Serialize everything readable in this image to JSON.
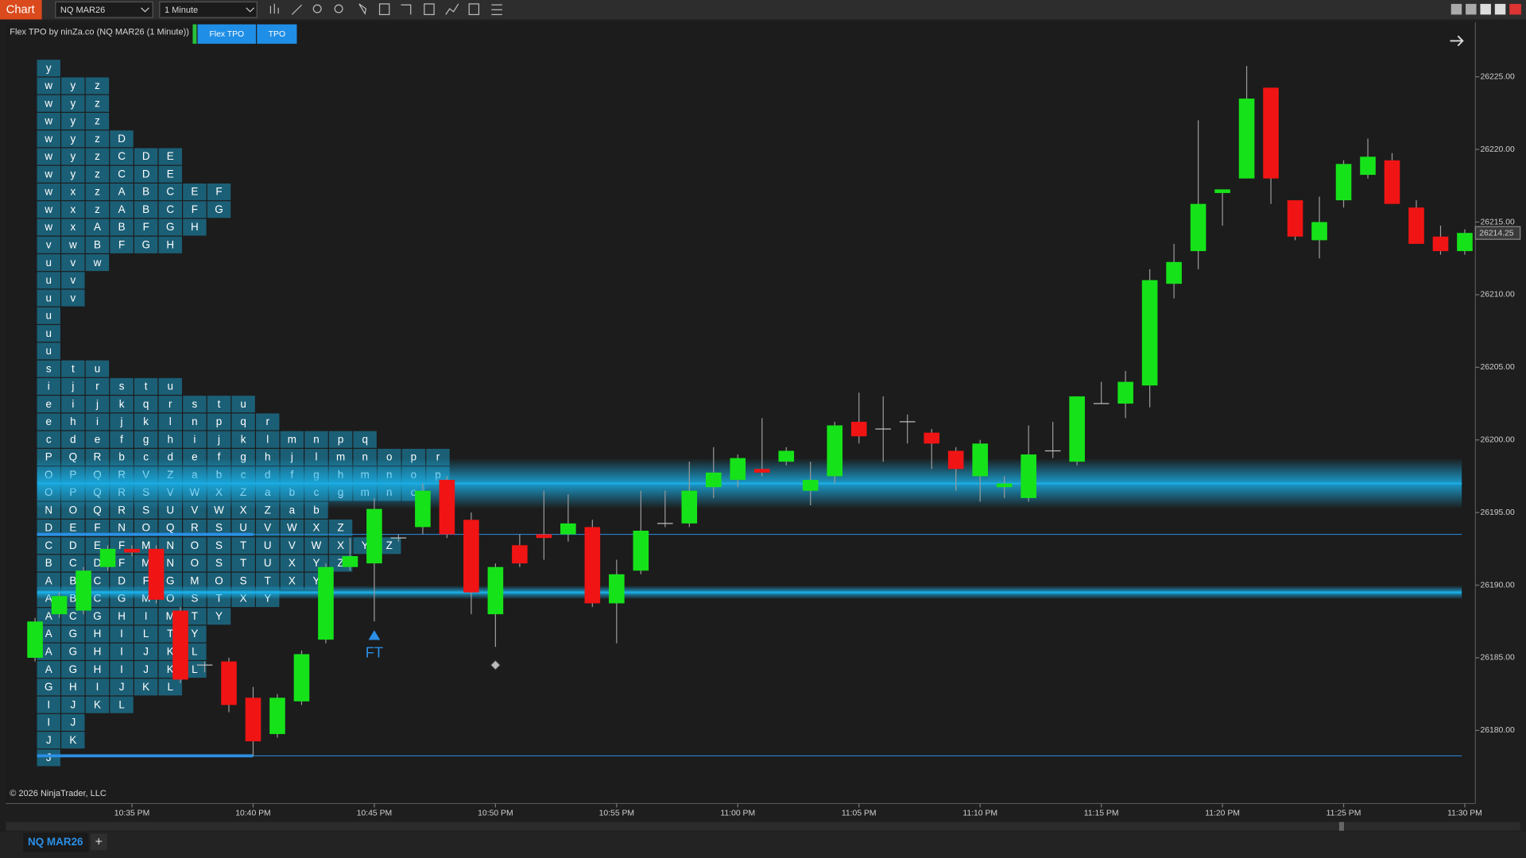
{
  "app": {
    "tab": "Chart",
    "instrument": "NQ MAR26",
    "interval": "1 Minute",
    "indicator_label": "Flex TPO by ninZa.co (NQ MAR26 (1 Minute))",
    "buttons": [
      "Flex TPO",
      "TPO"
    ],
    "copyright": "© 2026 NinjaTrader, LLC",
    "bottom_tab": "NQ MAR26",
    "add_tab": "+"
  },
  "chart_data": {
    "type": "candlestick",
    "categories": [
      null,
      null,
      null,
      null,
      "10:35 PM",
      null,
      null,
      null,
      null,
      "10:40 PM",
      null,
      null,
      null,
      null,
      "10:45 PM",
      null,
      null,
      null,
      null,
      "10:50 PM",
      null,
      null,
      null,
      null,
      "10:55 PM",
      null,
      null,
      null,
      null,
      "11:00 PM",
      null,
      null,
      null,
      null,
      "11:05 PM",
      null,
      null,
      null,
      null,
      "11:10 PM",
      null,
      null,
      null,
      null,
      "11:15 PM",
      null,
      null,
      null,
      null,
      "11:20 PM",
      null,
      null,
      null,
      null,
      "11:25 PM",
      null,
      null,
      null,
      null,
      "11:30 PM"
    ],
    "open": [
      26185.0,
      26188.0,
      26188.25,
      26191.25,
      26192.5,
      26192.5,
      26188.25,
      26184.5,
      26184.75,
      26182.25,
      26179.75,
      26182.0,
      26186.25,
      26191.25,
      26191.5,
      26193.25,
      26194.0,
      26197.25,
      26194.5,
      26188.0,
      26192.75,
      26193.5,
      26193.5,
      26194.0,
      26188.75,
      26191.0,
      26194.25,
      26194.25,
      26196.75,
      26197.25,
      26198.0,
      26198.5,
      26196.5,
      26197.5,
      26201.25,
      26200.75,
      26201.25,
      26200.5,
      26199.25,
      26197.5,
      26196.75,
      26196.0,
      26199.25,
      26198.5,
      26202.5,
      26202.5,
      26203.75,
      26210.75,
      26213.0,
      26217.0,
      26218.0,
      26224.25,
      26216.5,
      26213.75,
      26216.5,
      26218.25,
      26219.25,
      26216.0,
      26214.0,
      26213.0
    ],
    "high": [
      26187.75,
      26189.5,
      26191.25,
      26192.75,
      26192.75,
      26192.75,
      26188.5,
      26184.75,
      26185.0,
      26183.0,
      26182.5,
      26185.5,
      26191.5,
      26193.25,
      26196.0,
      26193.5,
      26197.0,
      26197.5,
      26195.0,
      26191.5,
      26193.5,
      26196.5,
      26196.25,
      26194.5,
      26191.75,
      26196.5,
      26196.5,
      26198.5,
      26199.5,
      26199.0,
      26201.5,
      26199.5,
      26198.5,
      26201.25,
      26203.25,
      26203.0,
      26201.75,
      26200.75,
      26199.5,
      26200.0,
      26197.5,
      26201.0,
      26201.25,
      26203.0,
      26204.0,
      26204.75,
      26211.75,
      26213.5,
      26222.0,
      26217.25,
      26225.75,
      26224.25,
      26216.5,
      26216.75,
      26219.25,
      26220.75,
      26219.75,
      26216.5,
      26214.75,
      26214.5
    ],
    "low": [
      26184.75,
      26187.75,
      26188.0,
      26191.0,
      26192.0,
      26188.75,
      26183.25,
      26184.0,
      26181.25,
      26178.25,
      26179.5,
      26181.75,
      26186.0,
      26191.0,
      26187.5,
      26193.0,
      26193.5,
      26193.25,
      26188.0,
      26185.75,
      26191.25,
      26191.75,
      26193.0,
      26188.5,
      26186.0,
      26190.75,
      26194.0,
      26194.0,
      26196.0,
      26196.75,
      26197.5,
      26198.25,
      26195.5,
      26197.0,
      26199.75,
      26198.5,
      26199.75,
      26198.0,
      26196.5,
      26195.75,
      26196.0,
      26195.75,
      26198.75,
      26198.25,
      26202.5,
      26201.5,
      26202.25,
      26209.75,
      26211.75,
      26214.75,
      26218.0,
      26216.25,
      26213.75,
      26212.5,
      26216.0,
      26218.0,
      26216.25,
      26213.5,
      26212.75,
      26212.75
    ],
    "close": [
      26187.5,
      26189.25,
      26191.0,
      26192.5,
      26192.25,
      26189.0,
      26183.5,
      26184.5,
      26181.75,
      26179.25,
      26182.25,
      26185.25,
      26191.25,
      26192.0,
      26195.25,
      26193.25,
      26196.5,
      26193.5,
      26189.5,
      26191.25,
      26191.5,
      26193.25,
      26194.25,
      26188.75,
      26190.75,
      26193.75,
      26194.25,
      26196.5,
      26197.75,
      26198.75,
      26197.75,
      26199.25,
      26197.25,
      26201.0,
      26200.25,
      26200.75,
      26201.25,
      26199.75,
      26198.0,
      26199.75,
      26197.0,
      26199.0,
      26199.25,
      26203.0,
      26202.5,
      26204.0,
      26211.0,
      26212.25,
      26216.25,
      26217.25,
      26223.5,
      26218.0,
      26214.0,
      26215.0,
      26219.0,
      26219.5,
      26216.25,
      26213.5,
      26213.0,
      26214.25
    ],
    "up_color": "#16e21a",
    "down_color": "#f01414",
    "ylim": [
      26175,
      26228.5
    ],
    "yticks": [
      {
        "value": 26180,
        "label": "26180.00"
      },
      {
        "value": 26185,
        "label": "26185.00"
      },
      {
        "value": 26190,
        "label": "26190.00"
      },
      {
        "value": 26195,
        "label": "26195.00"
      },
      {
        "value": 26200,
        "label": "26200.00"
      },
      {
        "value": 26205,
        "label": "26205.00"
      },
      {
        "value": 26210,
        "label": "26210.00"
      },
      {
        "value": 26215,
        "label": "26215.00"
      },
      {
        "value": 26220,
        "label": "26220.00"
      },
      {
        "value": 26225,
        "label": "26225.00"
      }
    ],
    "glow_levels": [
      26197.0,
      26189.5
    ],
    "thin_levels": [
      26193.5,
      26178.25
    ],
    "level_color": "#1ab0e8",
    "markers": [
      {
        "label": "FT",
        "time": "10:45 PM",
        "value": 26186.5
      },
      {
        "time": "10:50 PM",
        "value": 26184.5
      }
    ],
    "tpo_profile": {
      "color": "#1b5f76",
      "rows": [
        [
          "y"
        ],
        [
          "w",
          "y",
          "z"
        ],
        [
          "w",
          "y",
          "z"
        ],
        [
          "w",
          "y",
          "z"
        ],
        [
          "w",
          "y",
          "z",
          "D"
        ],
        [
          "w",
          "y",
          "z",
          "C",
          "D",
          "E"
        ],
        [
          "w",
          "y",
          "z",
          "C",
          "D",
          "E"
        ],
        [
          "w",
          "x",
          "z",
          "A",
          "B",
          "C",
          "E",
          "F"
        ],
        [
          "w",
          "x",
          "z",
          "A",
          "B",
          "C",
          "F",
          "G"
        ],
        [
          "w",
          "x",
          "A",
          "B",
          "F",
          "G",
          "H"
        ],
        [
          "v",
          "w",
          "B",
          "F",
          "G",
          "H"
        ],
        [
          "u",
          "v",
          "w"
        ],
        [
          "u",
          "v"
        ],
        [
          "u",
          "v"
        ],
        [
          "u"
        ],
        [
          "u"
        ],
        [
          "u"
        ],
        [
          "s",
          "t",
          "u"
        ],
        [
          "i",
          "j",
          "r",
          "s",
          "t",
          "u"
        ],
        [
          "e",
          "i",
          "j",
          "k",
          "q",
          "r",
          "s",
          "t",
          "u"
        ],
        [
          "e",
          "h",
          "i",
          "j",
          "k",
          "l",
          "n",
          "p",
          "q",
          "r"
        ],
        [
          "c",
          "d",
          "e",
          "f",
          "g",
          "h",
          "i",
          "j",
          "k",
          "l",
          "m",
          "n",
          "p",
          "q"
        ],
        [
          "P",
          "Q",
          "R",
          "b",
          "c",
          "d",
          "e",
          "f",
          "g",
          "h",
          "j",
          "l",
          "m",
          "n",
          "o",
          "p",
          "r"
        ],
        [
          "O",
          "P",
          "Q",
          "R",
          "V",
          "Z",
          "a",
          "b",
          "c",
          "d",
          "f",
          "g",
          "h",
          "m",
          "n",
          "o",
          "p"
        ],
        [
          "O",
          "P",
          "Q",
          "R",
          "S",
          "V",
          "W",
          "X",
          "Z",
          "a",
          "b",
          "c",
          "g",
          "m",
          "n",
          "o"
        ],
        [
          "N",
          "O",
          "Q",
          "R",
          "S",
          "U",
          "V",
          "W",
          "X",
          "Z",
          "a",
          "b"
        ],
        [
          "D",
          "E",
          "F",
          "N",
          "O",
          "Q",
          "R",
          "S",
          "U",
          "V",
          "W",
          "X",
          "Z"
        ],
        [
          "C",
          "D",
          "E",
          "F",
          "M",
          "N",
          "O",
          "S",
          "T",
          "U",
          "V",
          "W",
          "X",
          "Y",
          "Z"
        ],
        [
          "B",
          "C",
          "D",
          "F",
          "M",
          "N",
          "O",
          "S",
          "T",
          "U",
          "X",
          "Y",
          "Z"
        ],
        [
          "A",
          "B",
          "C",
          "D",
          "F",
          "G",
          "M",
          "O",
          "S",
          "T",
          "X",
          "Y"
        ],
        [
          "A",
          "B",
          "C",
          "G",
          "M",
          "O",
          "S",
          "T",
          "X",
          "Y"
        ],
        [
          "A",
          "C",
          "G",
          "H",
          "I",
          "M",
          "T",
          "Y"
        ],
        [
          "A",
          "G",
          "H",
          "I",
          "L",
          "T",
          "Y"
        ],
        [
          "A",
          "G",
          "H",
          "I",
          "J",
          "K",
          "L"
        ],
        [
          "A",
          "G",
          "H",
          "I",
          "J",
          "K",
          "L"
        ],
        [
          "G",
          "H",
          "I",
          "J",
          "K",
          "L"
        ],
        [
          "I",
          "J",
          "K",
          "L"
        ],
        [
          "I",
          "J"
        ],
        [
          "J",
          "K"
        ],
        [
          "J"
        ]
      ]
    }
  }
}
